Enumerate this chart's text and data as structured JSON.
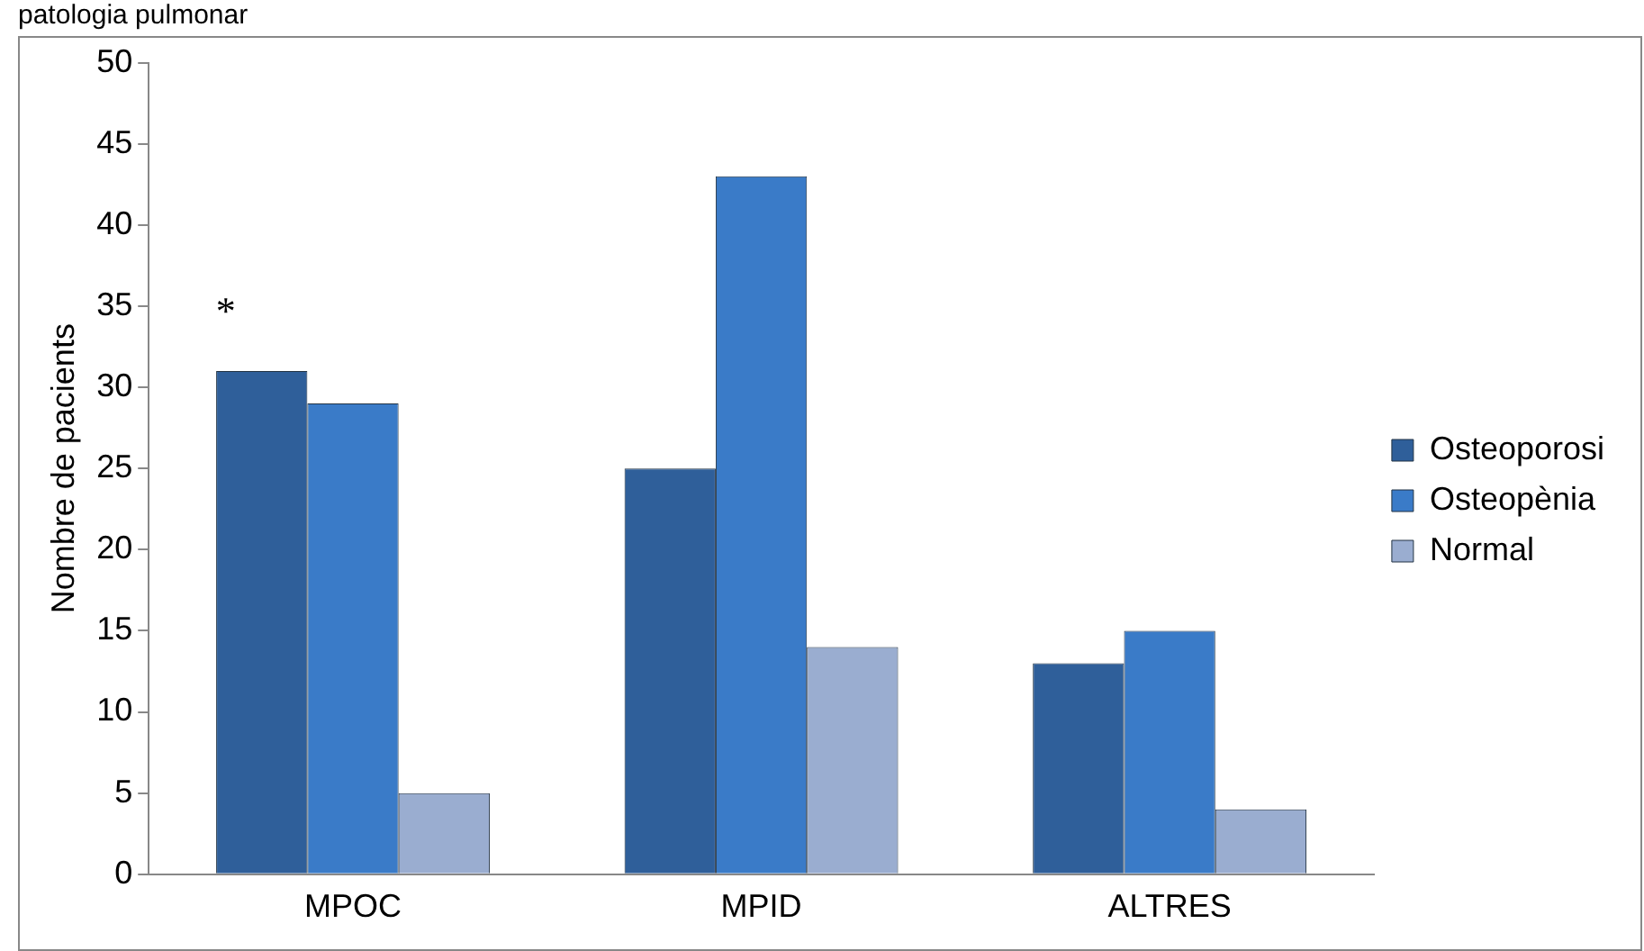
{
  "chart_data": {
    "type": "bar",
    "title": "patologia pulmonar",
    "ylabel": "Nombre de pacients",
    "categories": [
      "MPOC",
      "MPID",
      "ALTRES"
    ],
    "series": [
      {
        "name": "Osteoporosi",
        "color": "#2f5f9a",
        "values": [
          31,
          25,
          13
        ]
      },
      {
        "name": "Osteopènia",
        "color": "#3a7bc8",
        "values": [
          29,
          43,
          15
        ]
      },
      {
        "name": "Normal",
        "color": "#9aadd0",
        "values": [
          5,
          14,
          4
        ]
      }
    ],
    "ylim": [
      0,
      50
    ],
    "yticks": [
      0,
      5,
      10,
      15,
      20,
      25,
      30,
      35,
      40,
      45,
      50
    ],
    "grid": false,
    "legend": "right",
    "annotations": [
      "*"
    ]
  }
}
